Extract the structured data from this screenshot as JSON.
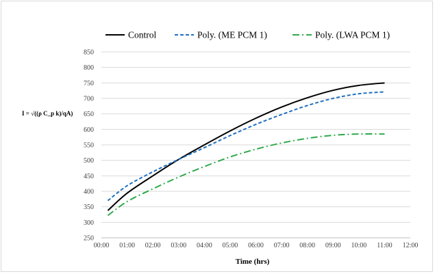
{
  "chart_data": {
    "type": "line",
    "title": "",
    "xlabel": "Time (hrs)",
    "ylabel": "I = √((ρ C_p k)/qA)",
    "x_ticks": [
      "00:00",
      "01:00",
      "02:00",
      "03:00",
      "04:00",
      "05:00",
      "06:00",
      "07:00",
      "08:00",
      "09:00",
      "10:00",
      "11:00",
      "12:00"
    ],
    "xlim": [
      0,
      12
    ],
    "y_ticks": [
      "250",
      "300",
      "350",
      "400",
      "450",
      "500",
      "550",
      "600",
      "650",
      "700",
      "750",
      "800",
      "850"
    ],
    "ylim": [
      250,
      850
    ],
    "grid": true,
    "legend_position": "top",
    "series": [
      {
        "name": "Control",
        "color": "#000000",
        "dash": "solid",
        "x": [
          0.25,
          1,
          2,
          3,
          4,
          5,
          6,
          7,
          8,
          9,
          10,
          11
        ],
        "y": [
          338,
          394,
          450,
          503,
          550,
          595,
          636,
          672,
          702,
          726,
          742,
          750
        ]
      },
      {
        "name": "Poly. (ME PCM 1)",
        "color": "#1f6fc0",
        "dash": "dashed",
        "x": [
          0.25,
          1,
          2,
          3,
          4,
          5,
          6,
          7,
          8,
          9,
          10,
          11
        ],
        "y": [
          370,
          418,
          463,
          503,
          541,
          580,
          616,
          648,
          677,
          700,
          715,
          721
        ]
      },
      {
        "name": "Poly. (LWA PCM 1)",
        "color": "#2eaa4a",
        "dash": "dashdot",
        "x": [
          0.25,
          1,
          2,
          3,
          4,
          5,
          6,
          7,
          8,
          9,
          10,
          11
        ],
        "y": [
          322,
          367,
          408,
          446,
          480,
          511,
          536,
          556,
          571,
          581,
          585,
          585
        ]
      }
    ]
  }
}
